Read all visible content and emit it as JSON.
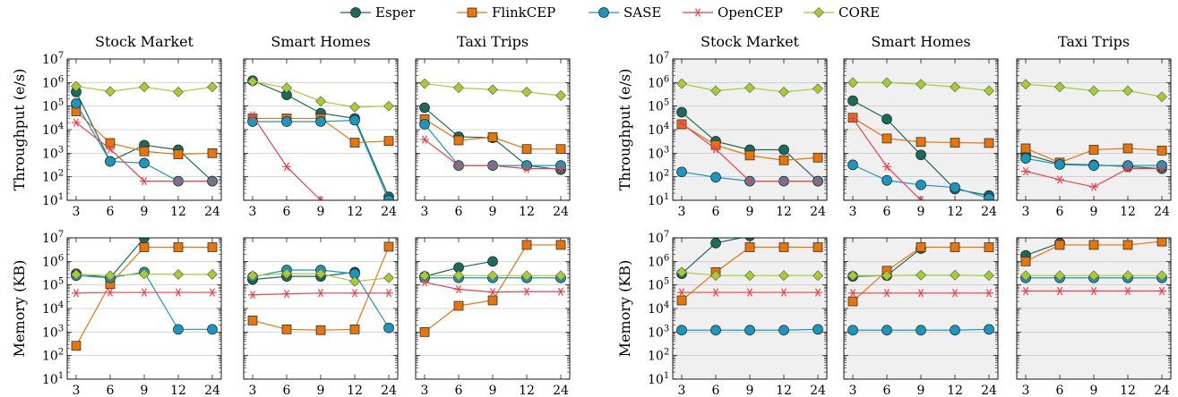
{
  "legend": [
    {
      "name": "Esper",
      "color": "#1a6b5b",
      "marker": "circle"
    },
    {
      "name": "FlinkCEP",
      "color": "#e8740c",
      "marker": "square"
    },
    {
      "name": "SASE",
      "color": "#1b97bd",
      "marker": "circle"
    },
    {
      "name": "OpenCEP",
      "color": "#e8434b",
      "marker": "star"
    },
    {
      "name": "CORE",
      "color": "#a8cc2e",
      "marker": "diamond"
    }
  ],
  "y_labels": {
    "throughput": "Throughput (e/s)",
    "memory": "Memory (KB)"
  },
  "x_ticks": [
    "3",
    "6",
    "9",
    "12",
    "24"
  ],
  "y_ticks_throughput": [
    "10^1",
    "10^2",
    "10^3",
    "10^4",
    "10^5",
    "10^6",
    "10^7"
  ],
  "y_ticks_memory": [
    "10^1",
    "10^2",
    "10^3",
    "10^4",
    "10^5",
    "10^6",
    "10^7"
  ],
  "chart_data": [
    {
      "type": "line",
      "group": "left",
      "title": "Stock Market",
      "metric": "throughput",
      "ylabel": "Throughput (e/s)",
      "y_scale": "log",
      "ylim": [
        10,
        10000000
      ],
      "background": "#ffffff",
      "categories": [
        "3",
        "6",
        "9",
        "12",
        "24"
      ],
      "series": [
        {
          "name": "Esper",
          "values": [
            400000,
            450,
            2200,
            1400,
            65
          ]
        },
        {
          "name": "FlinkCEP",
          "values": [
            60000,
            2700,
            1200,
            900,
            1000
          ]
        },
        {
          "name": "SASE",
          "values": [
            130000,
            450,
            380,
            65,
            65
          ]
        },
        {
          "name": "OpenCEP",
          "values": [
            20000,
            1500,
            65,
            65,
            65
          ]
        },
        {
          "name": "CORE",
          "values": [
            700000,
            420000,
            650000,
            400000,
            650000
          ]
        }
      ]
    },
    {
      "type": "line",
      "group": "left",
      "title": "Smart Homes",
      "metric": "throughput",
      "ylabel": "",
      "y_scale": "log",
      "ylim": [
        10,
        10000000
      ],
      "background": "#ffffff",
      "categories": [
        "3",
        "6",
        "9",
        "12",
        "24"
      ],
      "series": [
        {
          "name": "Esper",
          "values": [
            1200000,
            300000,
            50000,
            30000,
            14
          ]
        },
        {
          "name": "FlinkCEP",
          "values": [
            30000,
            30000,
            30000,
            2800,
            3300
          ]
        },
        {
          "name": "SASE",
          "values": [
            22000,
            22000,
            22000,
            25000,
            10
          ]
        },
        {
          "name": "OpenCEP",
          "values": [
            40000,
            270,
            10,
            null,
            null
          ]
        },
        {
          "name": "CORE",
          "values": [
            1100000,
            600000,
            160000,
            90000,
            100000
          ]
        }
      ]
    },
    {
      "type": "line",
      "group": "left",
      "title": "Taxi Trips",
      "metric": "throughput",
      "ylabel": "",
      "y_scale": "log",
      "ylim": [
        10,
        10000000
      ],
      "background": "#ffffff",
      "categories": [
        "3",
        "6",
        "9",
        "12",
        "24"
      ],
      "series": [
        {
          "name": "Esper",
          "values": [
            85000,
            5000,
            4500,
            300,
            200
          ]
        },
        {
          "name": "FlinkCEP",
          "values": [
            28000,
            3500,
            4800,
            1500,
            1500
          ]
        },
        {
          "name": "SASE",
          "values": [
            17000,
            300,
            300,
            300,
            300
          ]
        },
        {
          "name": "OpenCEP",
          "values": [
            3800,
            300,
            300,
            220,
            220
          ]
        },
        {
          "name": "CORE",
          "values": [
            900000,
            600000,
            500000,
            400000,
            280000
          ]
        }
      ]
    },
    {
      "type": "line",
      "group": "right",
      "title": "Stock Market",
      "metric": "throughput",
      "ylabel": "Throughput (e/s)",
      "y_scale": "log",
      "ylim": [
        10,
        10000000
      ],
      "background": "#f0f0f0",
      "categories": [
        "3",
        "6",
        "9",
        "12",
        "24"
      ],
      "series": [
        {
          "name": "Esper",
          "values": [
            55000,
            3200,
            1400,
            1400,
            65
          ]
        },
        {
          "name": "FlinkCEP",
          "values": [
            17000,
            2200,
            800,
            500,
            650
          ]
        },
        {
          "name": "SASE",
          "values": [
            160,
            95,
            65,
            65,
            65
          ]
        },
        {
          "name": "OpenCEP",
          "values": [
            18000,
            1500,
            65,
            65,
            65
          ]
        },
        {
          "name": "CORE",
          "values": [
            900000,
            450000,
            600000,
            400000,
            550000
          ]
        }
      ]
    },
    {
      "type": "line",
      "group": "right",
      "title": "Smart Homes",
      "metric": "throughput",
      "ylabel": "",
      "y_scale": "log",
      "ylim": [
        10,
        10000000
      ],
      "background": "#f0f0f0",
      "categories": [
        "3",
        "6",
        "9",
        "12",
        "24"
      ],
      "series": [
        {
          "name": "Esper",
          "values": [
            170000,
            28000,
            850,
            30,
            16
          ]
        },
        {
          "name": "FlinkCEP",
          "values": [
            32000,
            4200,
            3000,
            2800,
            2700
          ]
        },
        {
          "name": "SASE",
          "values": [
            320,
            70,
            45,
            35,
            12
          ]
        },
        {
          "name": "OpenCEP",
          "values": [
            30000,
            270,
            10,
            null,
            null
          ]
        },
        {
          "name": "CORE",
          "values": [
            1000000,
            1000000,
            850000,
            650000,
            450000
          ]
        }
      ]
    },
    {
      "type": "line",
      "group": "right",
      "title": "Taxi Trips",
      "metric": "throughput",
      "ylabel": "",
      "y_scale": "log",
      "ylim": [
        10,
        10000000
      ],
      "background": "#f0f0f0",
      "categories": [
        "3",
        "6",
        "9",
        "12",
        "24"
      ],
      "series": [
        {
          "name": "Esper",
          "values": [
            900,
            350,
            320,
            270,
            220
          ]
        },
        {
          "name": "FlinkCEP",
          "values": [
            1600,
            400,
            1400,
            1600,
            1300
          ]
        },
        {
          "name": "SASE",
          "values": [
            600,
            330,
            300,
            300,
            300
          ]
        },
        {
          "name": "OpenCEP",
          "values": [
            170,
            75,
            37,
            220,
            220
          ]
        },
        {
          "name": "CORE",
          "values": [
            850000,
            650000,
            450000,
            450000,
            250000
          ]
        }
      ]
    },
    {
      "type": "line",
      "group": "left",
      "title": "",
      "metric": "memory",
      "ylabel": "Memory (KB)",
      "y_scale": "log",
      "ylim": [
        10,
        10000000
      ],
      "background": "#ffffff",
      "categories": [
        "3",
        "6",
        "9",
        "12",
        "24"
      ],
      "series": [
        {
          "name": "Esper",
          "values": [
            300000,
            200000,
            10000000,
            null,
            null
          ]
        },
        {
          "name": "FlinkCEP",
          "values": [
            260,
            110000,
            4000000,
            4000000,
            4000000
          ]
        },
        {
          "name": "SASE",
          "values": [
            250000,
            200000,
            350000,
            1300,
            1300
          ]
        },
        {
          "name": "OpenCEP",
          "values": [
            45000,
            48000,
            48000,
            48000,
            48000
          ]
        },
        {
          "name": "CORE",
          "values": [
            280000,
            250000,
            290000,
            280000,
            280000
          ]
        }
      ]
    },
    {
      "type": "line",
      "group": "left",
      "title": "",
      "metric": "memory",
      "ylabel": "",
      "y_scale": "log",
      "ylim": [
        10,
        10000000
      ],
      "background": "#ffffff",
      "categories": [
        "3",
        "6",
        "9",
        "12",
        "24"
      ],
      "series": [
        {
          "name": "Esper",
          "values": [
            170000,
            230000,
            230000,
            350000,
            null
          ]
        },
        {
          "name": "FlinkCEP",
          "values": [
            3100,
            1300,
            1200,
            1300,
            4200000
          ]
        },
        {
          "name": "SASE",
          "values": [
            220000,
            430000,
            430000,
            300000,
            1500
          ]
        },
        {
          "name": "OpenCEP",
          "values": [
            38000,
            42000,
            45000,
            45000,
            45000
          ]
        },
        {
          "name": "CORE",
          "values": [
            250000,
            300000,
            300000,
            140000,
            200000
          ]
        }
      ]
    },
    {
      "type": "line",
      "group": "left",
      "title": "",
      "metric": "memory",
      "ylabel": "",
      "y_scale": "log",
      "ylim": [
        10,
        10000000
      ],
      "background": "#ffffff",
      "categories": [
        "3",
        "6",
        "9",
        "12",
        "24"
      ],
      "series": [
        {
          "name": "Esper",
          "values": [
            230000,
            550000,
            1000000,
            null,
            null
          ]
        },
        {
          "name": "FlinkCEP",
          "values": [
            1000,
            13000,
            22000,
            5000000,
            5000000
          ]
        },
        {
          "name": "SASE",
          "values": [
            200000,
            200000,
            200000,
            200000,
            200000
          ]
        },
        {
          "name": "OpenCEP",
          "values": [
            130000,
            65000,
            50000,
            52000,
            52000
          ]
        },
        {
          "name": "CORE",
          "values": [
            250000,
            250000,
            250000,
            250000,
            250000
          ]
        }
      ]
    },
    {
      "type": "line",
      "group": "right",
      "title": "",
      "metric": "memory",
      "ylabel": "Memory (KB)",
      "y_scale": "log",
      "ylim": [
        10,
        10000000
      ],
      "background": "#f0f0f0",
      "categories": [
        "3",
        "6",
        "9",
        "12",
        "24"
      ],
      "series": [
        {
          "name": "Esper",
          "values": [
            300000,
            6000000,
            12000000,
            null,
            null
          ]
        },
        {
          "name": "FlinkCEP",
          "values": [
            22000,
            350000,
            4000000,
            4000000,
            4000000
          ]
        },
        {
          "name": "SASE",
          "values": [
            1200,
            1200,
            1200,
            1200,
            1300
          ]
        },
        {
          "name": "OpenCEP",
          "values": [
            48000,
            48000,
            48000,
            48000,
            48000
          ]
        },
        {
          "name": "CORE",
          "values": [
            350000,
            250000,
            250000,
            250000,
            250000
          ]
        }
      ]
    },
    {
      "type": "line",
      "group": "right",
      "title": "",
      "metric": "memory",
      "ylabel": "",
      "y_scale": "log",
      "ylim": [
        10,
        10000000
      ],
      "background": "#f0f0f0",
      "categories": [
        "3",
        "6",
        "9",
        "12",
        "24"
      ],
      "series": [
        {
          "name": "Esper",
          "values": [
            230000,
            250000,
            3500000,
            null,
            null
          ]
        },
        {
          "name": "FlinkCEP",
          "values": [
            20000,
            400000,
            4000000,
            4000000,
            4000000
          ]
        },
        {
          "name": "SASE",
          "values": [
            1200,
            1200,
            1200,
            1200,
            1300
          ]
        },
        {
          "name": "OpenCEP",
          "values": [
            45000,
            45000,
            45000,
            45000,
            45000
          ]
        },
        {
          "name": "CORE",
          "values": [
            250000,
            250000,
            260000,
            260000,
            250000
          ]
        }
      ]
    },
    {
      "type": "line",
      "group": "right",
      "title": "",
      "metric": "memory",
      "ylabel": "",
      "y_scale": "log",
      "ylim": [
        10,
        10000000
      ],
      "background": "#f0f0f0",
      "categories": [
        "3",
        "6",
        "9",
        "12",
        "24"
      ],
      "series": [
        {
          "name": "Esper",
          "values": [
            1800000,
            6000000,
            null,
            null,
            null
          ]
        },
        {
          "name": "FlinkCEP",
          "values": [
            1000000,
            5000000,
            5000000,
            5000000,
            7000000
          ]
        },
        {
          "name": "SASE",
          "values": [
            200000,
            200000,
            200000,
            200000,
            200000
          ]
        },
        {
          "name": "OpenCEP",
          "values": [
            55000,
            55000,
            55000,
            55000,
            55000
          ]
        },
        {
          "name": "CORE",
          "values": [
            250000,
            250000,
            250000,
            250000,
            250000
          ]
        }
      ]
    }
  ]
}
